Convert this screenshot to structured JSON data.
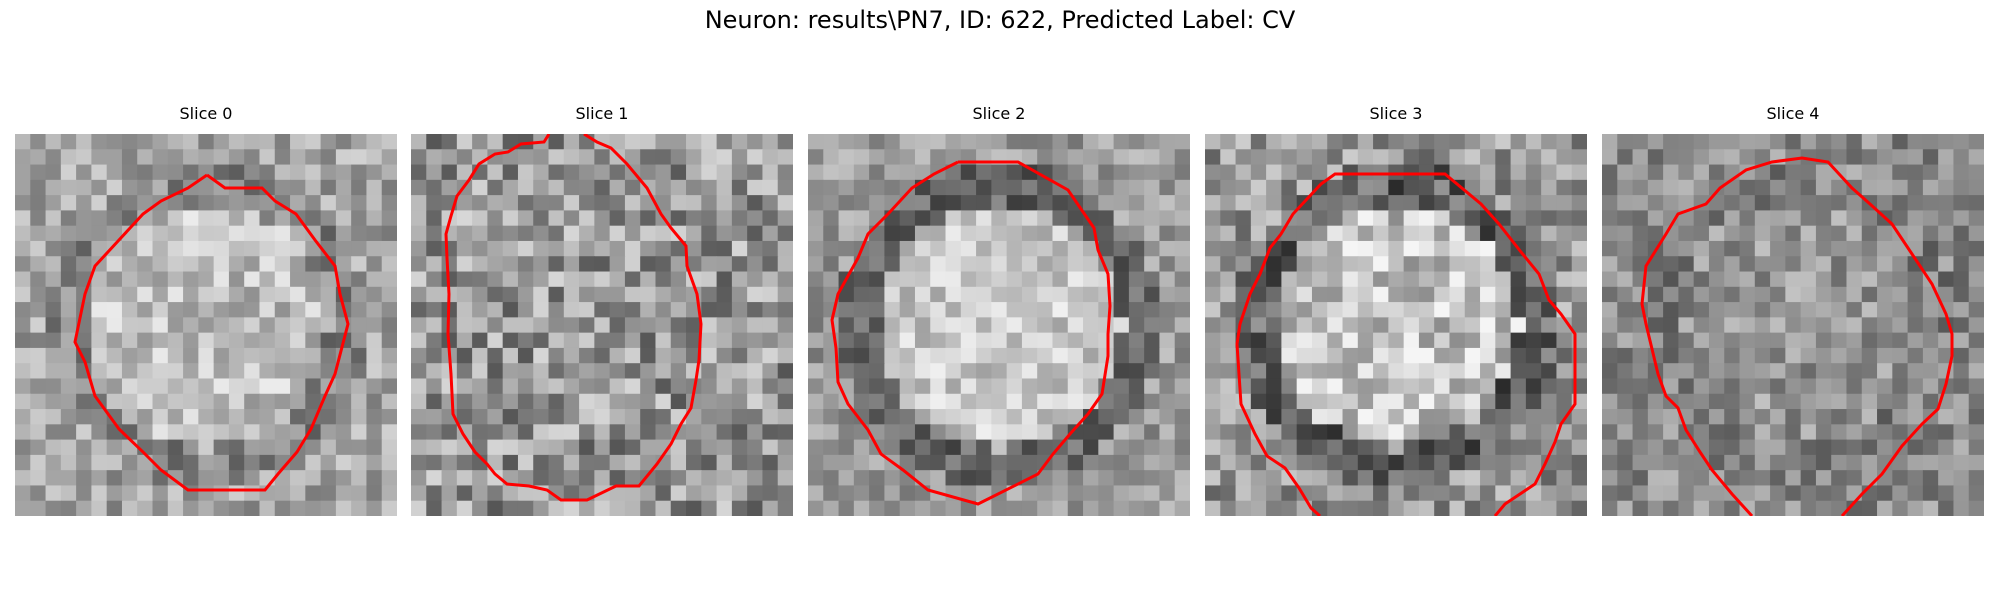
{
  "figure": {
    "title": "Neuron: results\\PN7, ID: 622, Predicted Label: CV"
  },
  "slices": [
    {
      "label": "Slice 0",
      "mean_gray": 165,
      "spread": 45,
      "center_boost": 25
    },
    {
      "label": "Slice 1",
      "mean_gray": 150,
      "spread": 65,
      "center_boost": 0
    },
    {
      "label": "Slice 2",
      "mean_gray": 155,
      "spread": 40,
      "center_boost": 45
    },
    {
      "label": "Slice 3",
      "mean_gray": 150,
      "spread": 55,
      "center_boost": 45
    },
    {
      "label": "Slice 4",
      "mean_gray": 140,
      "spread": 45,
      "center_boost": 10
    }
  ],
  "contour_color": "#ff0000",
  "colormap": "gray"
}
